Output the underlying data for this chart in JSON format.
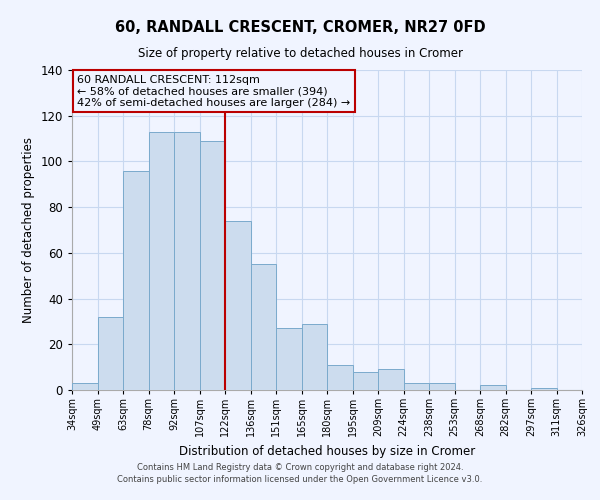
{
  "title": "60, RANDALL CRESCENT, CROMER, NR27 0FD",
  "subtitle": "Size of property relative to detached houses in Cromer",
  "xlabel": "Distribution of detached houses by size in Cromer",
  "ylabel": "Number of detached properties",
  "bar_values": [
    3,
    32,
    96,
    113,
    113,
    109,
    74,
    55,
    27,
    29,
    11,
    8,
    9,
    3,
    3,
    0,
    2,
    0,
    1,
    0
  ],
  "bar_labels": [
    "34sqm",
    "49sqm",
    "63sqm",
    "78sqm",
    "92sqm",
    "107sqm",
    "122sqm",
    "136sqm",
    "151sqm",
    "165sqm",
    "180sqm",
    "195sqm",
    "209sqm",
    "224sqm",
    "238sqm",
    "253sqm",
    "268sqm",
    "282sqm",
    "297sqm",
    "311sqm",
    "326sqm"
  ],
  "bar_color": "#ccdcee",
  "bar_edge_color": "#7aaacc",
  "ylim": [
    0,
    140
  ],
  "yticks": [
    0,
    20,
    40,
    60,
    80,
    100,
    120,
    140
  ],
  "property_label": "60 RANDALL CRESCENT: 112sqm",
  "annotation_line1": "← 58% of detached houses are smaller (394)",
  "annotation_line2": "42% of semi-detached houses are larger (284) →",
  "vline_color": "#bb0000",
  "vline_x": 6.0,
  "annotation_box_edge": "#bb0000",
  "footer1": "Contains HM Land Registry data © Crown copyright and database right 2024.",
  "footer2": "Contains public sector information licensed under the Open Government Licence v3.0.",
  "background_color": "#f0f4ff"
}
